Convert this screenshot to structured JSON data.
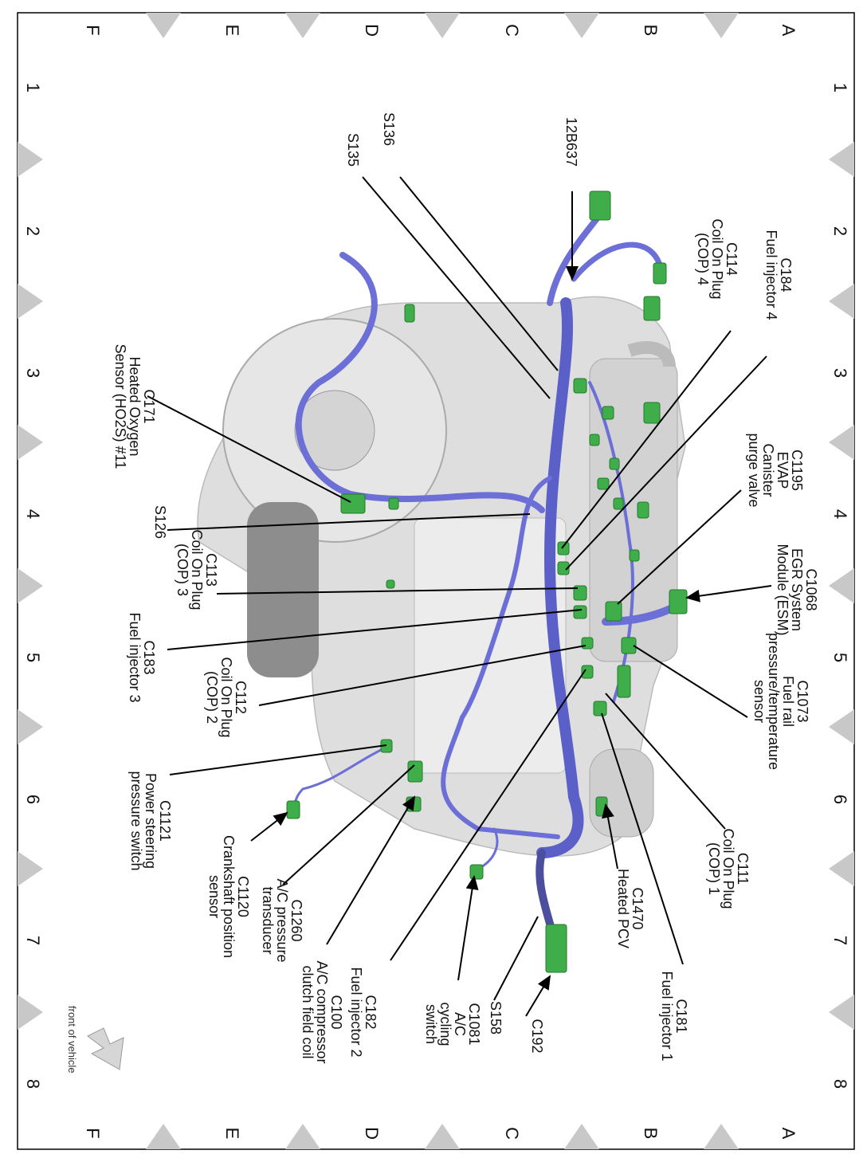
{
  "grid": {
    "letters": [
      "A",
      "B",
      "C",
      "D",
      "E",
      "F"
    ],
    "numbers": [
      "1",
      "2",
      "3",
      "4",
      "5",
      "6",
      "7",
      "8"
    ]
  },
  "colors": {
    "harness": "#6b6fd6",
    "harness_dark": "#4b4f9e",
    "connector": "#3fae4a",
    "engine": "#dcdcdc",
    "marker": "#c8c8c8"
  },
  "callouts": [
    {
      "lines": [
        "C184",
        "Fuel injector 4"
      ],
      "arrow": false
    },
    {
      "lines": [
        "C114",
        "Coil On Plug",
        "(COP) 4"
      ],
      "arrow": false
    },
    {
      "lines": [
        "12B637"
      ],
      "arrow": true
    },
    {
      "lines": [
        "S136"
      ],
      "arrow": false
    },
    {
      "lines": [
        "S135"
      ],
      "arrow": false
    },
    {
      "lines": [
        "C1195",
        "EVAP",
        "Canister",
        "purge valve"
      ],
      "arrow": false
    },
    {
      "lines": [
        "C1068",
        "EGR System",
        "Module (ESM)"
      ],
      "arrow": true
    },
    {
      "lines": [
        "C1073",
        "Fuel rail",
        "pressure/temperature",
        "sensor"
      ],
      "arrow": false
    },
    {
      "lines": [
        "C111",
        "Coil On Plug",
        "(COP) 1"
      ],
      "arrow": false
    },
    {
      "lines": [
        "C181",
        "Fuel injector 1"
      ],
      "arrow": false
    },
    {
      "lines": [
        "C1470",
        "Heated PCV"
      ],
      "arrow": true
    },
    {
      "lines": [
        "C192"
      ],
      "arrow": true
    },
    {
      "lines": [
        "S158"
      ],
      "arrow": false
    },
    {
      "lines": [
        "C1081",
        "A/C",
        "cycling",
        "switch"
      ],
      "arrow": true
    },
    {
      "lines": [
        "C182",
        "Fuel injector 2"
      ],
      "arrow": false
    },
    {
      "lines": [
        "C100",
        "A/C compressor",
        "clutch field coil"
      ],
      "arrow": true
    },
    {
      "lines": [
        "C1260",
        "A/C pressure",
        "transducer"
      ],
      "arrow": false
    },
    {
      "lines": [
        "C1120",
        "Crankshaft position",
        "sensor"
      ],
      "arrow": true
    },
    {
      "lines": [
        "C1121",
        "Power steering",
        "pressure switch"
      ],
      "arrow": false
    },
    {
      "lines": [
        "C112",
        "Coil On Plug",
        "(COP) 2"
      ],
      "arrow": false
    },
    {
      "lines": [
        "C183",
        "Fuel injector 3"
      ],
      "arrow": false
    },
    {
      "lines": [
        "C113",
        "Coil On Plug",
        "(COP) 3"
      ],
      "arrow": false
    },
    {
      "lines": [
        "S126"
      ],
      "arrow": false
    },
    {
      "lines": [
        "C171",
        "Heated Oxygen",
        "Sensor (HO2S) #11"
      ],
      "arrow": false
    }
  ],
  "orientation": {
    "label": "front of vehicle",
    "icon": "arrow-icon"
  }
}
